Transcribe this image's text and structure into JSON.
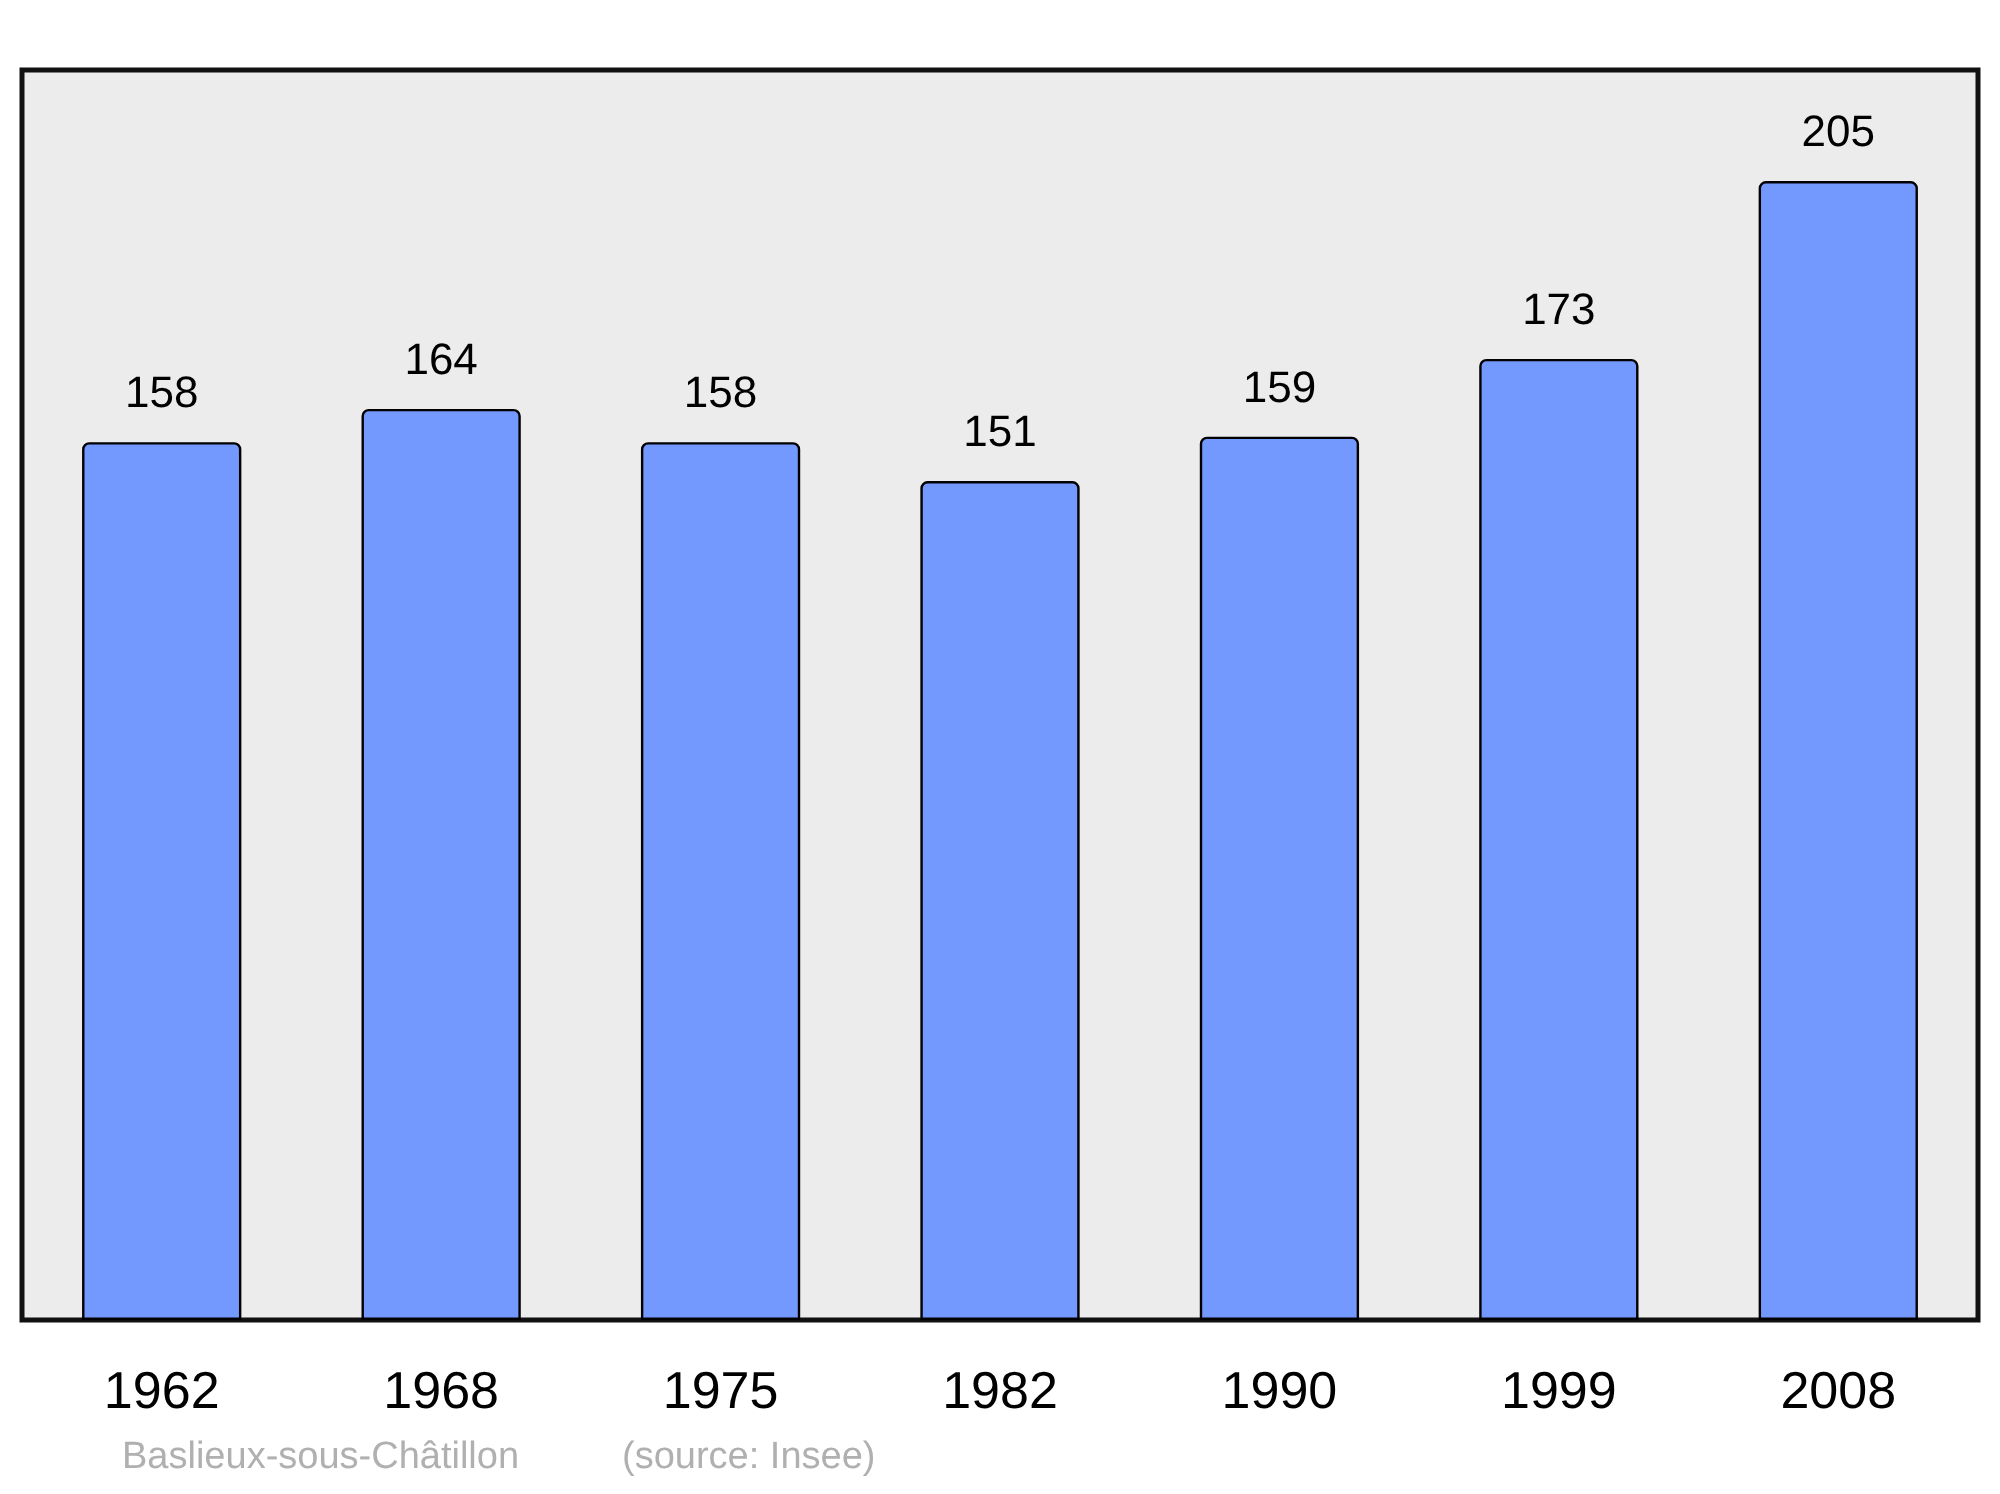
{
  "chart_data": {
    "type": "bar",
    "categories": [
      "1962",
      "1968",
      "1975",
      "1982",
      "1990",
      "1999",
      "2008"
    ],
    "values": [
      158,
      164,
      158,
      151,
      159,
      173,
      205
    ],
    "color": "#7399ff",
    "ylim": [
      0,
      225
    ],
    "data_labels": true,
    "annotations": [
      "Baslieux-sous-Châtillon",
      "(source: Insee)"
    ]
  }
}
